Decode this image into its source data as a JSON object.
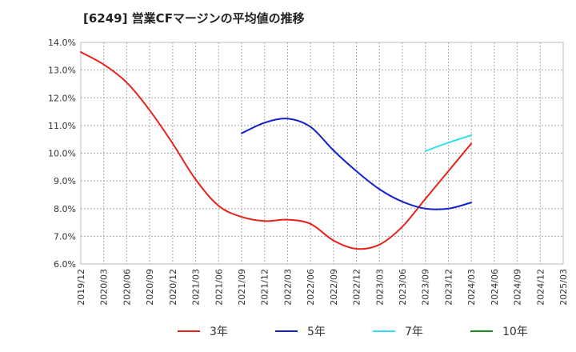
{
  "chart_data": {
    "type": "line",
    "title": "[6249]  営業CFマージンの平均値の推移",
    "xlabel": "",
    "ylabel": "",
    "ylim": [
      6.0,
      14.0
    ],
    "y_ticks": [
      "6.0%",
      "7.0%",
      "8.0%",
      "9.0%",
      "10.0%",
      "11.0%",
      "12.0%",
      "13.0%",
      "14.0%"
    ],
    "y_tick_values": [
      6,
      7,
      8,
      9,
      10,
      11,
      12,
      13,
      14
    ],
    "x_ticks": [
      "2019/12",
      "2020/03",
      "2020/06",
      "2020/09",
      "2020/12",
      "2021/03",
      "2021/06",
      "2021/09",
      "2021/12",
      "2022/03",
      "2022/06",
      "2022/09",
      "2022/12",
      "2023/03",
      "2023/06",
      "2023/09",
      "2023/12",
      "2024/03",
      "2024/06",
      "2024/09",
      "2024/12",
      "2025/03"
    ],
    "grid": true,
    "legend_position": "bottom",
    "series": [
      {
        "name": "3年",
        "color": "#e8221b",
        "points": [
          [
            "2019/12",
            13.65
          ],
          [
            "2020/03",
            13.2
          ],
          [
            "2020/06",
            12.55
          ],
          [
            "2020/09",
            11.55
          ],
          [
            "2020/12",
            10.35
          ],
          [
            "2021/03",
            9.05
          ],
          [
            "2021/06",
            8.1
          ],
          [
            "2021/09",
            7.7
          ],
          [
            "2021/12",
            7.55
          ],
          [
            "2022/03",
            7.6
          ],
          [
            "2022/06",
            7.45
          ],
          [
            "2022/09",
            6.85
          ],
          [
            "2022/12",
            6.55
          ],
          [
            "2023/03",
            6.7
          ],
          [
            "2023/06",
            7.35
          ],
          [
            "2023/09",
            8.35
          ],
          [
            "2023/12",
            9.35
          ],
          [
            "2024/03",
            10.35
          ]
        ]
      },
      {
        "name": "5年",
        "color": "#1420c8",
        "points": [
          [
            "2021/09",
            10.72
          ],
          [
            "2021/12",
            11.1
          ],
          [
            "2022/03",
            11.25
          ],
          [
            "2022/06",
            10.95
          ],
          [
            "2022/09",
            10.1
          ],
          [
            "2022/12",
            9.35
          ],
          [
            "2023/03",
            8.7
          ],
          [
            "2023/06",
            8.25
          ],
          [
            "2023/09",
            8.0
          ],
          [
            "2023/12",
            8.0
          ],
          [
            "2024/03",
            8.22
          ]
        ]
      },
      {
        "name": "7年",
        "color": "#33e0f0",
        "points": [
          [
            "2023/09",
            10.08
          ],
          [
            "2023/12",
            10.38
          ],
          [
            "2024/03",
            10.65
          ]
        ]
      },
      {
        "name": "10年",
        "color": "#1a8a1a",
        "points": []
      }
    ]
  }
}
